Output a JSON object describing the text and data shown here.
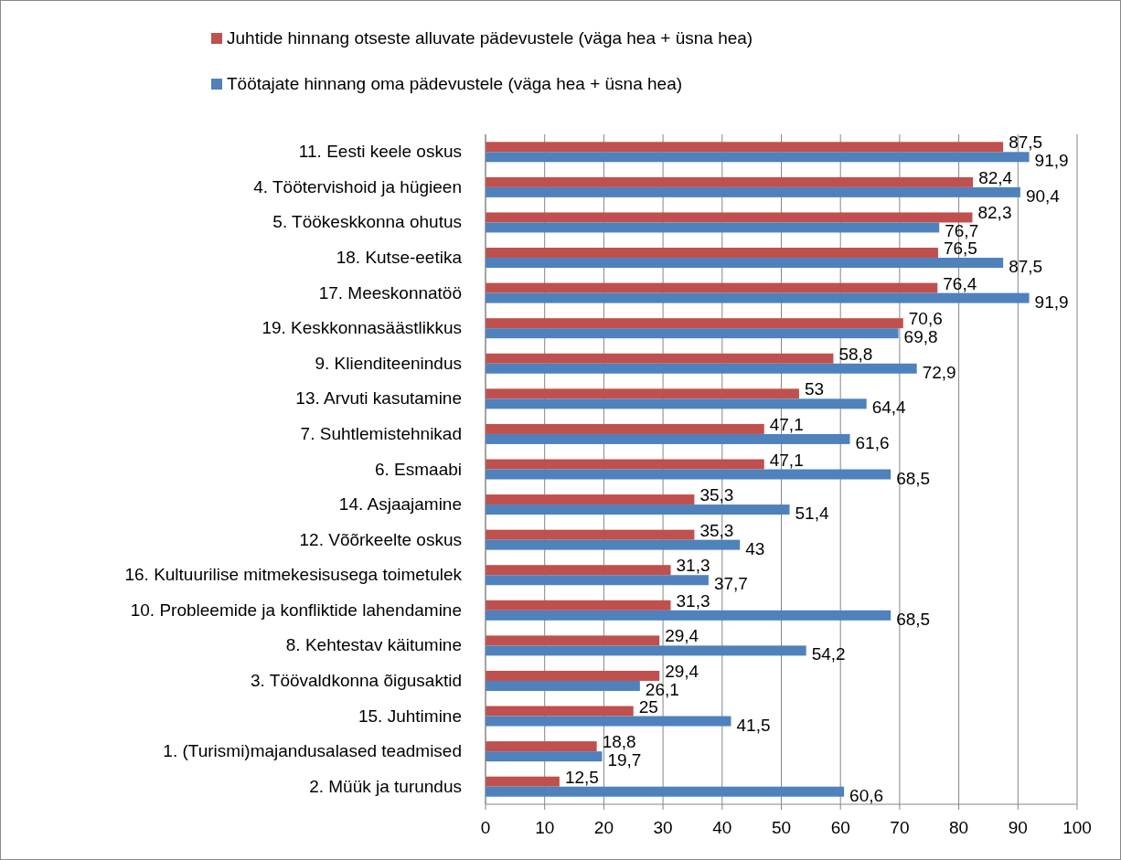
{
  "chart_data": {
    "type": "bar",
    "orientation": "horizontal",
    "categories": [
      "11. Eesti keele oskus",
      "4. Töötervishoid ja hügieen",
      "5. Töökeskkonna ohutus",
      "18. Kutse-eetika",
      "17. Meeskonnatöö",
      "19. Keskkonnasäästlikkus",
      "9. Klienditeenindus",
      "13. Arvuti kasutamine",
      "7. Suhtlemistehnikad",
      "6. Esmaabi",
      "14. Asjaajamine",
      "12. Võõrkeelte oskus",
      "16. Kultuurilise mitmekesisusega toimetulek",
      "10. Probleemide ja konfliktide lahendamine",
      "8. Kehtestav käitumine",
      "3. Töövaldkonna õigusaktid",
      "15. Juhtimine",
      "1. (Turismi)majandusalased teadmised",
      "2. Müük ja turundus"
    ],
    "series": [
      {
        "name": "Juhtide hinnang otseste alluvate pädevustele (väga hea + üsna hea)",
        "color": "#c0504d",
        "values": [
          87.5,
          82.4,
          82.3,
          76.5,
          76.4,
          70.6,
          58.8,
          53,
          47.1,
          47.1,
          35.3,
          35.3,
          31.3,
          31.3,
          29.4,
          29.4,
          25,
          18.8,
          12.5
        ],
        "value_labels": [
          "87,5",
          "82,4",
          "82,3",
          "76,5",
          "76,4",
          "70,6",
          "58,8",
          "53",
          "47,1",
          "47,1",
          "35,3",
          "35,3",
          "31,3",
          "31,3",
          "29,4",
          "29,4",
          "25",
          "18,8",
          "12,5"
        ]
      },
      {
        "name": "Töötajate hinnang oma pädevustele (väga hea + üsna hea)",
        "color": "#4f81bd",
        "values": [
          91.9,
          90.4,
          76.7,
          87.5,
          91.9,
          69.8,
          72.9,
          64.4,
          61.6,
          68.5,
          51.4,
          43,
          37.7,
          68.5,
          54.2,
          26.1,
          41.5,
          19.7,
          60.6
        ],
        "value_labels": [
          "91,9",
          "90,4",
          "76,7",
          "87,5",
          "91,9",
          "69,8",
          "72,9",
          "64,4",
          "61,6",
          "68,5",
          "51,4",
          "43",
          "37,7",
          "68,5",
          "54,2",
          "26,1",
          "41,5",
          "19,7",
          "60,6"
        ]
      }
    ],
    "xlim": [
      0,
      100
    ],
    "xticks": [
      0,
      10,
      20,
      30,
      40,
      50,
      60,
      70,
      80,
      90,
      100
    ],
    "grid": "x",
    "legend": "top"
  }
}
